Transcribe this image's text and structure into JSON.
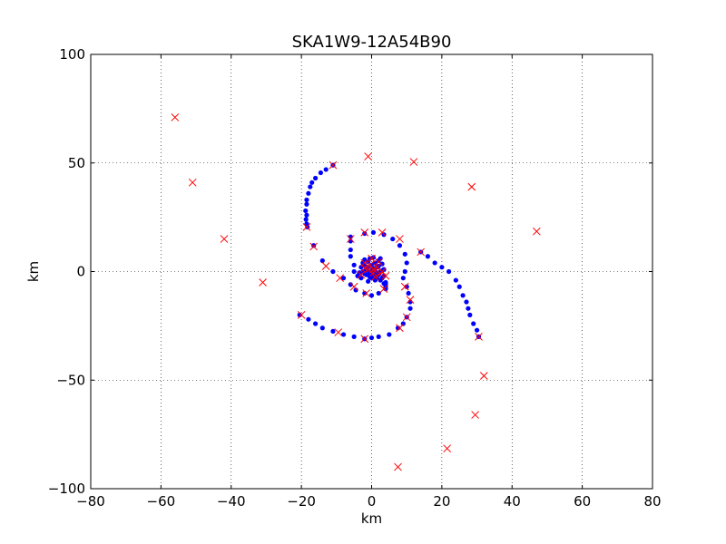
{
  "chart_data": {
    "type": "scatter",
    "title": "SKA1W9-12A54B90",
    "xlabel": "km",
    "ylabel": "km",
    "xlim": [
      -80,
      80
    ],
    "ylim": [
      -100,
      100
    ],
    "xticks": [
      -80,
      -60,
      -40,
      -20,
      0,
      20,
      40,
      60,
      80
    ],
    "yticks": [
      -100,
      -50,
      0,
      50,
      100
    ],
    "xtick_labels": [
      "−80",
      "−60",
      "−40",
      "−20",
      "0",
      "20",
      "40",
      "60",
      "80"
    ],
    "ytick_labels": [
      "−100",
      "−50",
      "0",
      "50",
      "100"
    ],
    "grid": true,
    "series": [
      {
        "marker": "dot",
        "color": "#0000ff",
        "points": [
          [
            -11,
            49
          ],
          [
            -13,
            47
          ],
          [
            -14.5,
            45.5
          ],
          [
            -16,
            43
          ],
          [
            -17,
            41
          ],
          [
            -17.5,
            39
          ],
          [
            -18,
            36
          ],
          [
            -18.5,
            33
          ],
          [
            -18.5,
            31
          ],
          [
            -18.8,
            28
          ],
          [
            -18.5,
            26
          ],
          [
            -18.7,
            24
          ],
          [
            -18.5,
            22
          ],
          [
            -18.3,
            20.5
          ],
          [
            -16.5,
            12
          ],
          [
            -14,
            5
          ],
          [
            -11,
            0
          ],
          [
            -8,
            -3
          ],
          [
            -6,
            -6
          ],
          [
            -4.5,
            -8.5
          ],
          [
            -2,
            -10
          ],
          [
            0,
            -11
          ],
          [
            2,
            -10
          ],
          [
            -6,
            14
          ],
          [
            -6,
            10
          ],
          [
            -6,
            7
          ],
          [
            -5,
            3
          ],
          [
            -5,
            0
          ],
          [
            -4,
            -2
          ],
          [
            -6,
            16
          ],
          [
            -2,
            17.5
          ],
          [
            0.5,
            18
          ],
          [
            3.5,
            17
          ],
          [
            6,
            15
          ],
          [
            8,
            12
          ],
          [
            9.5,
            8
          ],
          [
            10,
            4
          ],
          [
            9.5,
            0
          ],
          [
            9,
            -3
          ],
          [
            10,
            -7
          ],
          [
            10.5,
            -10
          ],
          [
            11,
            -14
          ],
          [
            11,
            -17
          ],
          [
            10,
            -21
          ],
          [
            9,
            -24
          ],
          [
            7.5,
            -26
          ],
          [
            5,
            -29
          ],
          [
            2,
            -30
          ],
          [
            0,
            -30.5
          ],
          [
            -2,
            -31
          ],
          [
            -5,
            -30
          ],
          [
            -8,
            -29
          ],
          [
            -11,
            -27.5
          ],
          [
            -14,
            -26
          ],
          [
            -16,
            -24
          ],
          [
            -18,
            -22
          ],
          [
            -20.5,
            -20
          ],
          [
            14,
            9
          ],
          [
            16,
            7
          ],
          [
            18,
            4
          ],
          [
            20,
            2
          ],
          [
            22,
            0
          ],
          [
            24,
            -4
          ],
          [
            25,
            -7
          ],
          [
            26,
            -11
          ],
          [
            27,
            -14
          ],
          [
            27.5,
            -17
          ],
          [
            28,
            -20
          ],
          [
            29,
            -24
          ],
          [
            30,
            -27
          ],
          [
            30.5,
            -30
          ],
          [
            0,
            0
          ],
          [
            0.5,
            0.5
          ],
          [
            -0.5,
            -0.5
          ],
          [
            1,
            1.5
          ],
          [
            -1,
            2
          ],
          [
            1.5,
            -1
          ],
          [
            -1.5,
            -1.5
          ],
          [
            2,
            2.5
          ],
          [
            -2,
            3
          ],
          [
            2.5,
            0
          ],
          [
            -2.5,
            0
          ],
          [
            0,
            3
          ],
          [
            0,
            -3
          ],
          [
            1,
            4
          ],
          [
            -1,
            4.5
          ],
          [
            2,
            5
          ],
          [
            -2,
            5.5
          ],
          [
            3,
            3.5
          ],
          [
            -3,
            2
          ],
          [
            3.5,
            -2
          ],
          [
            -3,
            -3
          ],
          [
            1,
            -4
          ],
          [
            -1,
            -4.5
          ],
          [
            4,
            -5
          ],
          [
            4,
            -6
          ],
          [
            4,
            -7
          ],
          [
            4,
            -8
          ],
          [
            3.5,
            1
          ],
          [
            3,
            -3
          ],
          [
            -0.5,
            6
          ],
          [
            0.5,
            6.5
          ],
          [
            2.5,
            6
          ],
          [
            -2.5,
            4
          ],
          [
            1.5,
            2
          ],
          [
            -1.5,
            1
          ],
          [
            0.5,
            -2
          ],
          [
            -0.5,
            -2.5
          ],
          [
            2,
            -1.5
          ],
          [
            3,
            0.5
          ],
          [
            -3.5,
            -0.5
          ],
          [
            1.5,
            -3
          ],
          [
            2.5,
            -4
          ],
          [
            3.5,
            -5.5
          ],
          [
            -2,
            -1
          ],
          [
            0.3,
            1.2
          ],
          [
            -0.3,
            -1.2
          ],
          [
            1.2,
            -0.5
          ],
          [
            -1.2,
            0.6
          ]
        ]
      },
      {
        "marker": "x",
        "color": "#ff0000",
        "points": [
          [
            -56,
            71
          ],
          [
            -51,
            41
          ],
          [
            -42,
            15
          ],
          [
            -31,
            -5
          ],
          [
            -1,
            53
          ],
          [
            12,
            50.5
          ],
          [
            28.5,
            39
          ],
          [
            47,
            18.5
          ],
          [
            14,
            9
          ],
          [
            8,
            15
          ],
          [
            3,
            18
          ],
          [
            -2,
            18
          ],
          [
            -6,
            15
          ],
          [
            -16.5,
            11.5
          ],
          [
            -13,
            2.5
          ],
          [
            -9,
            -3
          ],
          [
            -5,
            -7
          ],
          [
            -1.5,
            -10
          ],
          [
            3.5,
            -8
          ],
          [
            9.5,
            -7
          ],
          [
            11,
            -13
          ],
          [
            10,
            -21
          ],
          [
            8,
            -26
          ],
          [
            -2,
            -31
          ],
          [
            -9.5,
            -28
          ],
          [
            -20,
            -20
          ],
          [
            -18.5,
            20.5
          ],
          [
            -11,
            49
          ],
          [
            30.5,
            -30
          ],
          [
            32,
            -48
          ],
          [
            29.5,
            -66
          ],
          [
            21.5,
            -81.5
          ],
          [
            7.5,
            -90
          ],
          [
            0.5,
            -0.5
          ],
          [
            -1,
            1
          ],
          [
            1.5,
            2
          ],
          [
            -2,
            4
          ],
          [
            2,
            4.5
          ],
          [
            0,
            6
          ],
          [
            3,
            0
          ],
          [
            -3,
            -1.5
          ],
          [
            1,
            -2.5
          ],
          [
            -0.5,
            3
          ],
          [
            4,
            -2
          ],
          [
            -2,
            1.5
          ],
          [
            2.5,
            -1
          ],
          [
            0.5,
            1
          ]
        ]
      }
    ]
  }
}
